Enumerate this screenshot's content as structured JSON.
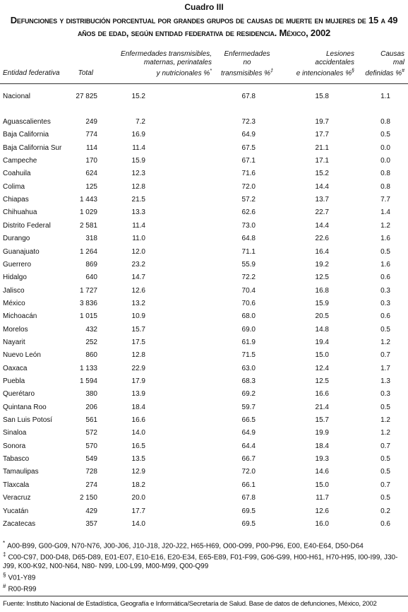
{
  "title": "Cuadro III",
  "subtitle": "Defunciones y distribución porcentual por grandes grupos de causas de muerte en mujeres de 15 a 49 años de edad, según entidad federativa de residencia. México, 2002",
  "table": {
    "headers": [
      {
        "lines": [
          "Entidad federativa"
        ]
      },
      {
        "lines": [
          "Total"
        ]
      },
      {
        "lines": [
          "Enfermedades transmisibles,",
          "maternas, perinatales",
          "y nutricionales %"
        ],
        "sup": "*"
      },
      {
        "lines": [
          "Enfermedades",
          "no",
          "transmisibles %"
        ],
        "sup": "‡"
      },
      {
        "lines": [
          "Lesiones",
          "accidentales",
          "e intencionales %"
        ],
        "sup": "§"
      },
      {
        "lines": [
          "Causas",
          "mal",
          "definidas %"
        ],
        "sup": "#"
      }
    ],
    "national": [
      "Nacional",
      "27 825",
      "15.2",
      "67.8",
      "15.8",
      "1.1"
    ],
    "rows": [
      [
        "Aguascalientes",
        "249",
        "7.2",
        "72.3",
        "19.7",
        "0.8"
      ],
      [
        "Baja California",
        "774",
        "16.9",
        "64.9",
        "17.7",
        "0.5"
      ],
      [
        "Baja California Sur",
        "114",
        "11.4",
        "67.5",
        "21.1",
        "0.0"
      ],
      [
        "Campeche",
        "170",
        "15.9",
        "67.1",
        "17.1",
        "0.0"
      ],
      [
        "Coahuila",
        "624",
        "12.3",
        "71.6",
        "15.2",
        "0.8"
      ],
      [
        "Colima",
        "125",
        "12.8",
        "72.0",
        "14.4",
        "0.8"
      ],
      [
        "Chiapas",
        "1 443",
        "21.5",
        "57.2",
        "13.7",
        "7.7"
      ],
      [
        "Chihuahua",
        "1 029",
        "13.3",
        "62.6",
        "22.7",
        "1.4"
      ],
      [
        "Distrito Federal",
        "2 581",
        "11.4",
        "73.0",
        "14.4",
        "1.2"
      ],
      [
        "Durango",
        "318",
        "11.0",
        "64.8",
        "22.6",
        "1.6"
      ],
      [
        "Guanajuato",
        "1 264",
        "12.0",
        "71.1",
        "16.4",
        "0.5"
      ],
      [
        "Guerrero",
        "869",
        "23.2",
        "55.9",
        "19.2",
        "1.6"
      ],
      [
        "Hidalgo",
        "640",
        "14.7",
        "72.2",
        "12.5",
        "0.6"
      ],
      [
        "Jalisco",
        "1 727",
        "12.6",
        "70.4",
        "16.8",
        "0.3"
      ],
      [
        "México",
        "3 836",
        "13.2",
        "70.6",
        "15.9",
        "0.3"
      ],
      [
        "Michoacán",
        "1 015",
        "10.9",
        "68.0",
        "20.5",
        "0.6"
      ],
      [
        "Morelos",
        "432",
        "15.7",
        "69.0",
        "14.8",
        "0.5"
      ],
      [
        "Nayarit",
        "252",
        "17.5",
        "61.9",
        "19.4",
        "1.2"
      ],
      [
        "Nuevo León",
        "860",
        "12.8",
        "71.5",
        "15.0",
        "0.7"
      ],
      [
        "Oaxaca",
        "1 133",
        "22.9",
        "63.0",
        "12.4",
        "1.7"
      ],
      [
        "Puebla",
        "1 594",
        "17.9",
        "68.3",
        "12.5",
        "1.3"
      ],
      [
        "Querétaro",
        "380",
        "13.9",
        "69.2",
        "16.6",
        "0.3"
      ],
      [
        "Quintana Roo",
        "206",
        "18.4",
        "59.7",
        "21.4",
        "0.5"
      ],
      [
        "San Luis Potosí",
        "561",
        "16.6",
        "66.5",
        "15.7",
        "1.2"
      ],
      [
        "Sinaloa",
        "572",
        "14.0",
        "64.9",
        "19.9",
        "1.2"
      ],
      [
        "Sonora",
        "570",
        "16.5",
        "64.4",
        "18.4",
        "0.7"
      ],
      [
        "Tabasco",
        "549",
        "13.5",
        "66.7",
        "19.3",
        "0.5"
      ],
      [
        "Tamaulipas",
        "728",
        "12.9",
        "72.0",
        "14.6",
        "0.5"
      ],
      [
        "Tlaxcala",
        "274",
        "18.2",
        "66.1",
        "15.0",
        "0.7"
      ],
      [
        "Veracruz",
        "2 150",
        "20.0",
        "67.8",
        "11.7",
        "0.5"
      ],
      [
        "Yucatán",
        "429",
        "17.7",
        "69.5",
        "12.6",
        "0.2"
      ],
      [
        "Zacatecas",
        "357",
        "14.0",
        "69.5",
        "16.0",
        "0.6"
      ]
    ]
  },
  "footnotes": [
    {
      "symbol": "*",
      "text": "A00-B99, G00-G09, N70-N76, J00-J06, J10-J18, J20-J22, H65-H69, O00-O99, P00-P96, E00, E40-E64, D50-D64"
    },
    {
      "symbol": "‡",
      "text": "C00-C97, D00-D48, D65-D89, E01-E07, E10-E16, E20-E34, E65-E89, F01-F99, G06-G99, H00-H61, H70-H95, I00-I99, J30-J99, K00-K92, N00-N64, N80- N99, L00-L99, M00-M99, Q00-Q99"
    },
    {
      "symbol": "§",
      "text": "V01-Y89"
    },
    {
      "symbol": "#",
      "text": "R00-R99"
    }
  ],
  "source": "Fuente: Instituto Nacional de Estadística, Geografía e Informática/Secretaría de Salud. Base de datos de defunciones, México, 2002"
}
